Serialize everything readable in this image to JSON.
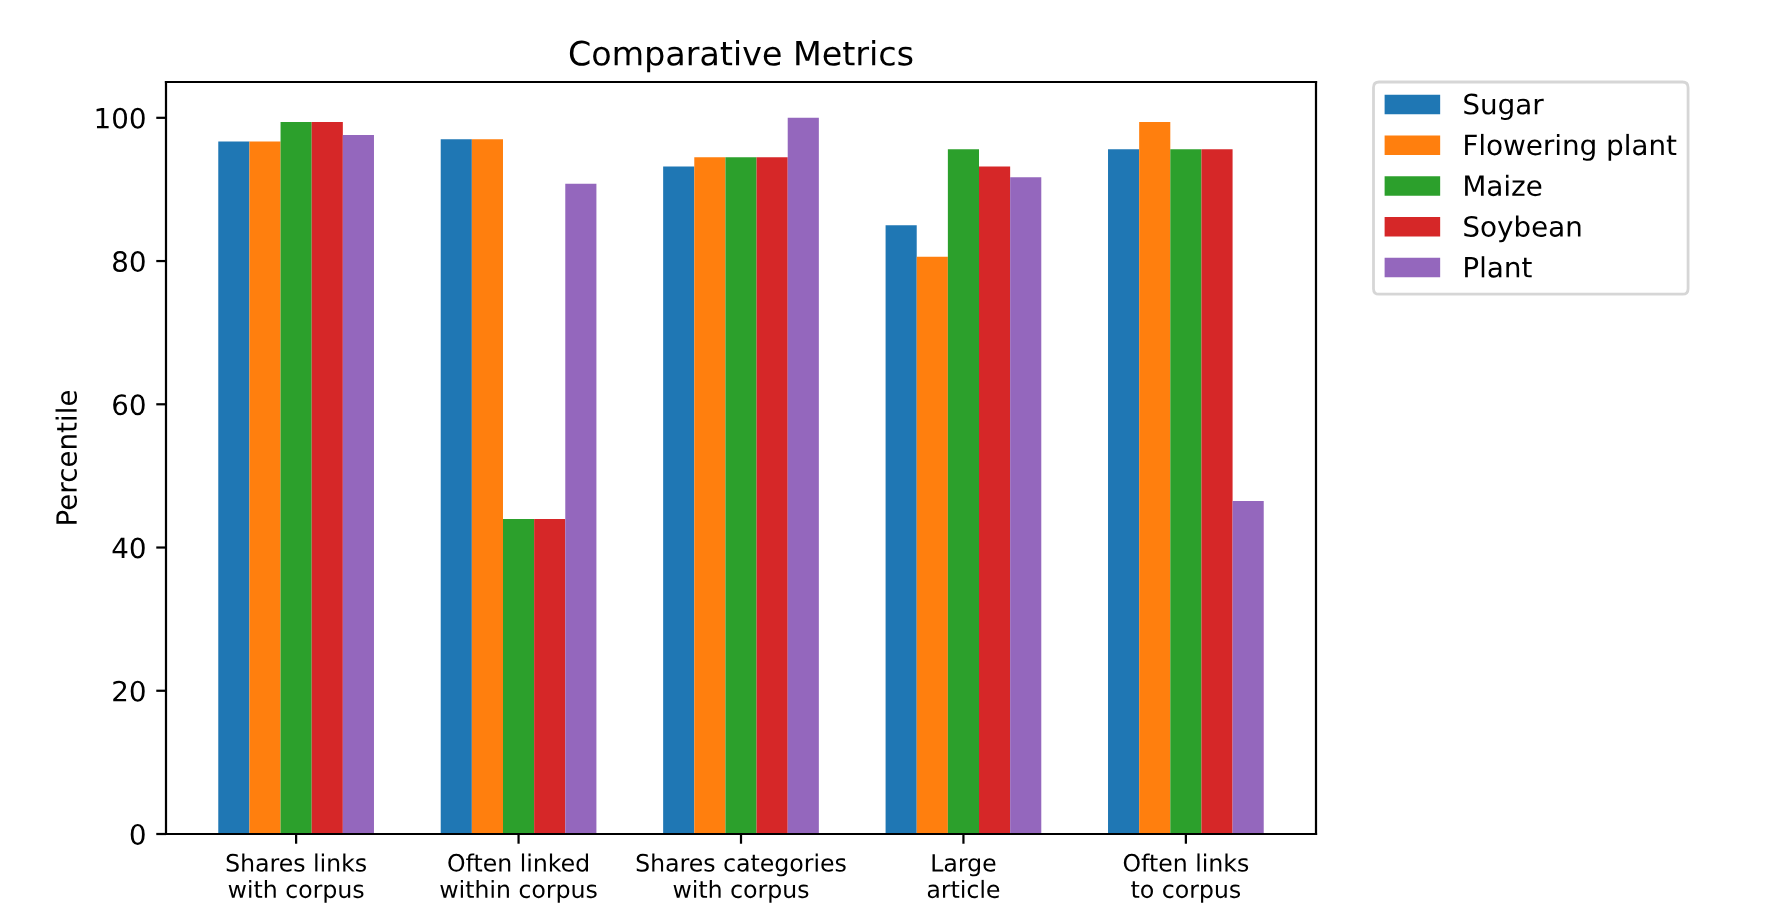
{
  "chart_data": {
    "type": "bar",
    "title": "Comparative Metrics",
    "ylabel": "Percentile",
    "categories": [
      "Shares links\nwith corpus",
      "Often linked\nwithin corpus",
      "Shares categories\nwith corpus",
      "Large\narticle",
      "Often links\nto corpus"
    ],
    "series": [
      {
        "name": "Sugar",
        "color": "#1f77b4",
        "values": [
          96.7,
          97,
          93.2,
          85,
          95.6
        ]
      },
      {
        "name": "Flowering plant",
        "color": "#ff7f0e",
        "values": [
          96.7,
          97,
          94.5,
          80.6,
          99.4
        ]
      },
      {
        "name": "Maize",
        "color": "#2ca02c",
        "values": [
          99.4,
          44,
          94.5,
          95.6,
          95.6
        ]
      },
      {
        "name": "Soybean",
        "color": "#d62728",
        "values": [
          99.4,
          44,
          94.5,
          93.2,
          95.6
        ]
      },
      {
        "name": "Plant",
        "color": "#9467bd",
        "values": [
          97.6,
          90.8,
          100,
          91.7,
          46.5
        ]
      }
    ],
    "ylim": [
      0,
      105
    ],
    "yticks": [
      0,
      20,
      40,
      60,
      80,
      100
    ],
    "grid": false,
    "legend": "top right"
  }
}
